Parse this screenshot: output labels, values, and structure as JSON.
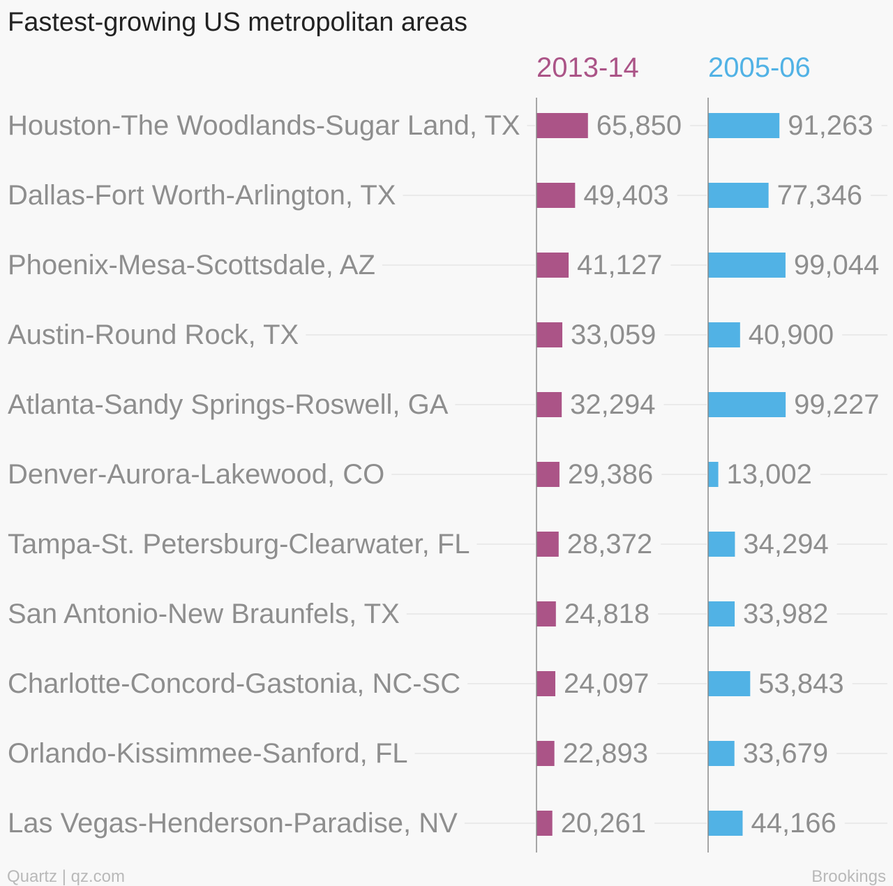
{
  "title": "Fastest-growing US metropolitan areas",
  "credit": "Quartz | qz.com",
  "source": "Brookings",
  "colors": {
    "series_0": "#ab5487",
    "series_1": "#51b2e5",
    "text": "#8e8e8e",
    "title": "#222222"
  },
  "chart_data": {
    "type": "bar",
    "orientation": "horizontal",
    "title": "Fastest-growing US metropolitan areas",
    "categories": [
      "Houston-The Woodlands-Sugar Land, TX",
      "Dallas-Fort Worth-Arlington, TX",
      "Phoenix-Mesa-Scottsdale, AZ",
      "Austin-Round Rock, TX",
      "Atlanta-Sandy Springs-Roswell, GA",
      "Denver-Aurora-Lakewood, CO",
      "Tampa-St. Petersburg-Clearwater, FL",
      "San Antonio-New Braunfels, TX",
      "Charlotte-Concord-Gastonia, NC-SC",
      "Orlando-Kissimmee-Sanford, FL",
      "Las Vegas-Henderson-Paradise, NV"
    ],
    "series": [
      {
        "name": "2013-14",
        "color": "#ab5487",
        "values": [
          65850,
          49403,
          41127,
          33059,
          32294,
          29386,
          28372,
          24818,
          24097,
          22893,
          20261
        ],
        "labels": [
          "65,850",
          "49,403",
          "41,127",
          "33,059",
          "32,294",
          "29,386",
          "28,372",
          "24,818",
          "24,097",
          "22,893",
          "20,261"
        ]
      },
      {
        "name": "2005-06",
        "color": "#51b2e5",
        "values": [
          91263,
          77346,
          99044,
          40900,
          99227,
          13002,
          34294,
          33982,
          53843,
          33679,
          44166
        ],
        "labels": [
          "91,263",
          "77,346",
          "99,044",
          "40,900",
          "99,227",
          "13,002",
          "34,294",
          "33,982",
          "53,843",
          "33,679",
          "44,166"
        ]
      }
    ],
    "xlim": [
      0,
      100000
    ],
    "grid": false,
    "legend": "none"
  }
}
